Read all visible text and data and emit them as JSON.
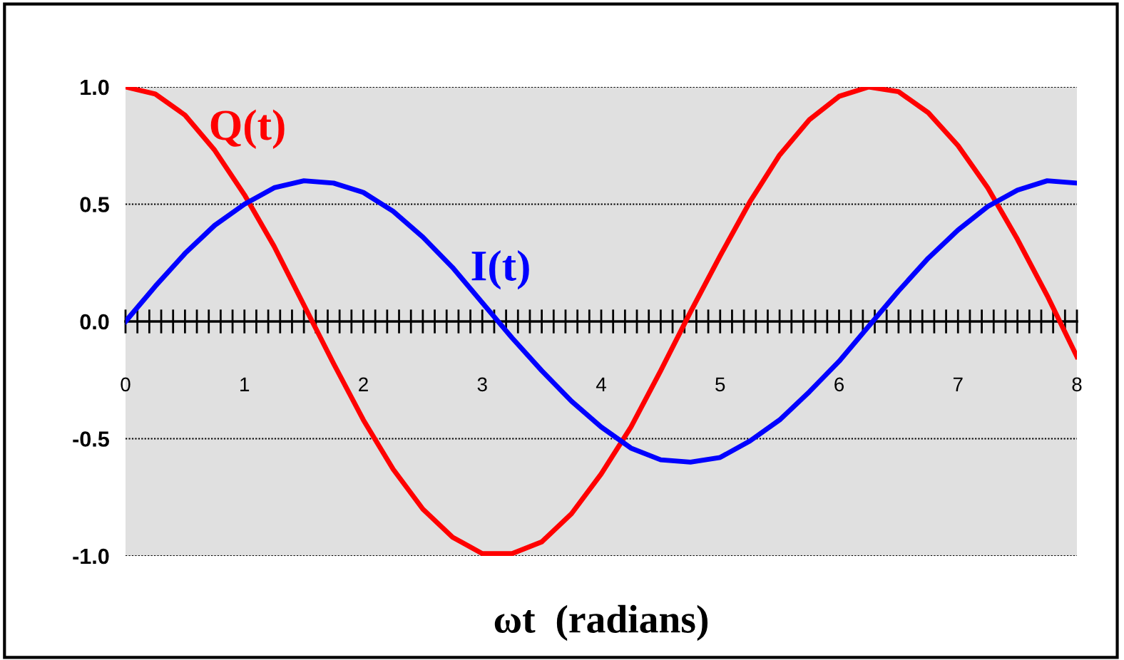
{
  "chart_data": {
    "type": "line",
    "xlabel": "ωt  (radians)",
    "x": [
      0,
      0.25,
      0.5,
      0.75,
      1,
      1.25,
      1.5,
      1.75,
      2,
      2.25,
      2.5,
      2.75,
      3,
      3.25,
      3.5,
      3.75,
      4,
      4.25,
      4.5,
      4.75,
      5,
      5.25,
      5.5,
      5.75,
      6,
      6.25,
      6.5,
      6.75,
      7,
      7.25,
      7.5,
      7.75,
      8
    ],
    "series": [
      {
        "name": "Q(t)",
        "color": "#ff0000",
        "values": [
          1.0,
          0.97,
          0.88,
          0.73,
          0.54,
          0.32,
          0.07,
          -0.18,
          -0.42,
          -0.63,
          -0.8,
          -0.92,
          -0.99,
          -0.99,
          -0.94,
          -0.82,
          -0.65,
          -0.45,
          -0.21,
          0.04,
          0.28,
          0.51,
          0.71,
          0.86,
          0.96,
          1.0,
          0.98,
          0.89,
          0.75,
          0.57,
          0.35,
          0.11,
          -0.15
        ]
      },
      {
        "name": "I(t)",
        "color": "#0000ff",
        "values": [
          0,
          0.15,
          0.29,
          0.41,
          0.5,
          0.57,
          0.6,
          0.59,
          0.55,
          0.47,
          0.36,
          0.23,
          0.08,
          -0.07,
          -0.21,
          -0.34,
          -0.45,
          -0.54,
          -0.59,
          -0.6,
          -0.58,
          -0.51,
          -0.42,
          -0.3,
          -0.17,
          -0.02,
          0.13,
          0.27,
          0.39,
          0.49,
          0.56,
          0.6,
          0.59
        ]
      }
    ],
    "xlim": [
      0,
      8
    ],
    "xticks": [
      0,
      1,
      2,
      3,
      4,
      5,
      6,
      7,
      8
    ],
    "ylim": [
      -1,
      1
    ],
    "yticks": [
      {
        "value": -1,
        "label": "-1.0"
      },
      {
        "value": -0.5,
        "label": "-0.5"
      },
      {
        "value": 0,
        "label": "0.0"
      },
      {
        "value": 0.5,
        "label": "0.5"
      },
      {
        "value": 1,
        "label": "1.0"
      }
    ],
    "grid": "y",
    "legend": false,
    "marker": "none",
    "line_style": "solid"
  }
}
